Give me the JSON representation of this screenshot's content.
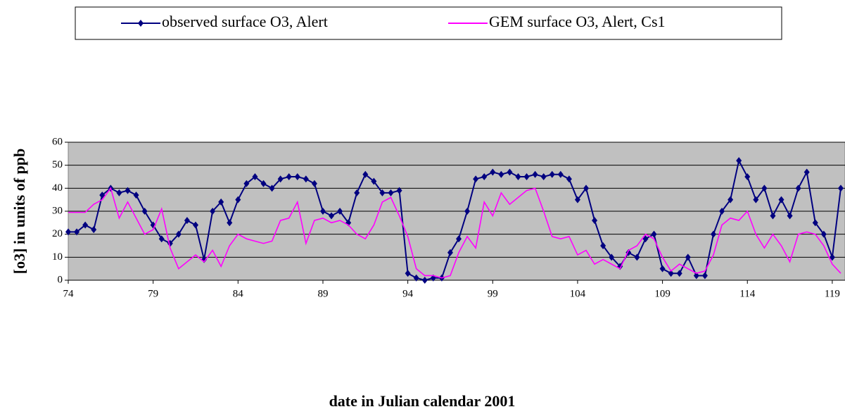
{
  "chart_data": {
    "type": "line",
    "x_label": "date in Julian calendar 2001",
    "y_label": "[o3] in units of ppb",
    "xlim": [
      74,
      119.75
    ],
    "ylim": [
      0,
      60
    ],
    "xticks": [
      74,
      79,
      84,
      89,
      94,
      99,
      104,
      109,
      114,
      119
    ],
    "yticks": [
      0,
      10,
      20,
      30,
      40,
      50,
      60
    ],
    "grid": true,
    "plot_background": "#c0c0c0",
    "legend": "top",
    "x": [
      74,
      74.5,
      75,
      75.5,
      76,
      76.5,
      77,
      77.5,
      78,
      78.5,
      79,
      79.5,
      80,
      80.5,
      81,
      81.5,
      82,
      82.5,
      83,
      83.5,
      84,
      84.5,
      85,
      85.5,
      86,
      86.5,
      87,
      87.5,
      88,
      88.5,
      89,
      89.5,
      90,
      90.5,
      91,
      91.5,
      92,
      92.5,
      93,
      93.5,
      94,
      94.5,
      95,
      95.5,
      96,
      96.5,
      97,
      97.5,
      98,
      98.5,
      99,
      99.5,
      100,
      100.5,
      101,
      101.5,
      102,
      102.5,
      103,
      103.5,
      104,
      104.5,
      105,
      105.5,
      106,
      106.5,
      107,
      107.5,
      108,
      108.5,
      109,
      109.5,
      110,
      110.5,
      111,
      111.5,
      112,
      112.5,
      113,
      113.5,
      114,
      114.5,
      115,
      115.5,
      116,
      116.5,
      117,
      117.5,
      118,
      118.5,
      119,
      119.5
    ],
    "series": [
      {
        "name": "observed surface O3, Alert",
        "color": "#000080",
        "marker": "diamond",
        "values": [
          21,
          21,
          24,
          22,
          37,
          40,
          38,
          39,
          37,
          30,
          24,
          18,
          16,
          20,
          26,
          24,
          9,
          30,
          34,
          25,
          35,
          42,
          45,
          42,
          40,
          44,
          45,
          45,
          44,
          42,
          30,
          28,
          30,
          25,
          38,
          46,
          43,
          38,
          38,
          39,
          3,
          1,
          0,
          1,
          1,
          12,
          18,
          30,
          44,
          45,
          47,
          46,
          47,
          45,
          45,
          46,
          45,
          46,
          46,
          44,
          35,
          40,
          26,
          15,
          10,
          6,
          12,
          10,
          18,
          20,
          5,
          3,
          3,
          10,
          2,
          2,
          20,
          30,
          35,
          52,
          45,
          35,
          40,
          28,
          35,
          28,
          40,
          47,
          25,
          20,
          10,
          40
        ]
      },
      {
        "name": "GEM surface O3, Alert, Cs1",
        "color": "#ff00ff",
        "values": [
          29.5,
          29.5,
          29.5,
          33,
          35,
          40,
          27,
          34,
          27,
          20,
          22,
          31,
          14,
          5,
          8,
          11,
          8,
          13,
          6,
          15,
          20,
          18,
          17,
          16,
          17,
          26,
          27,
          34,
          16,
          26,
          27,
          25,
          26,
          24,
          20,
          18,
          24,
          34,
          36,
          28,
          19,
          5,
          2,
          2,
          1,
          2,
          12,
          19,
          14,
          34,
          28,
          38,
          33,
          36,
          39,
          40,
          30,
          19,
          18,
          19,
          11,
          13,
          7,
          9,
          7,
          5,
          13,
          15,
          20,
          18,
          10,
          4,
          7,
          5,
          3,
          4,
          11,
          24,
          27,
          26,
          30,
          20,
          14,
          20,
          15,
          8,
          20,
          21,
          20,
          15,
          7,
          3
        ]
      }
    ]
  }
}
